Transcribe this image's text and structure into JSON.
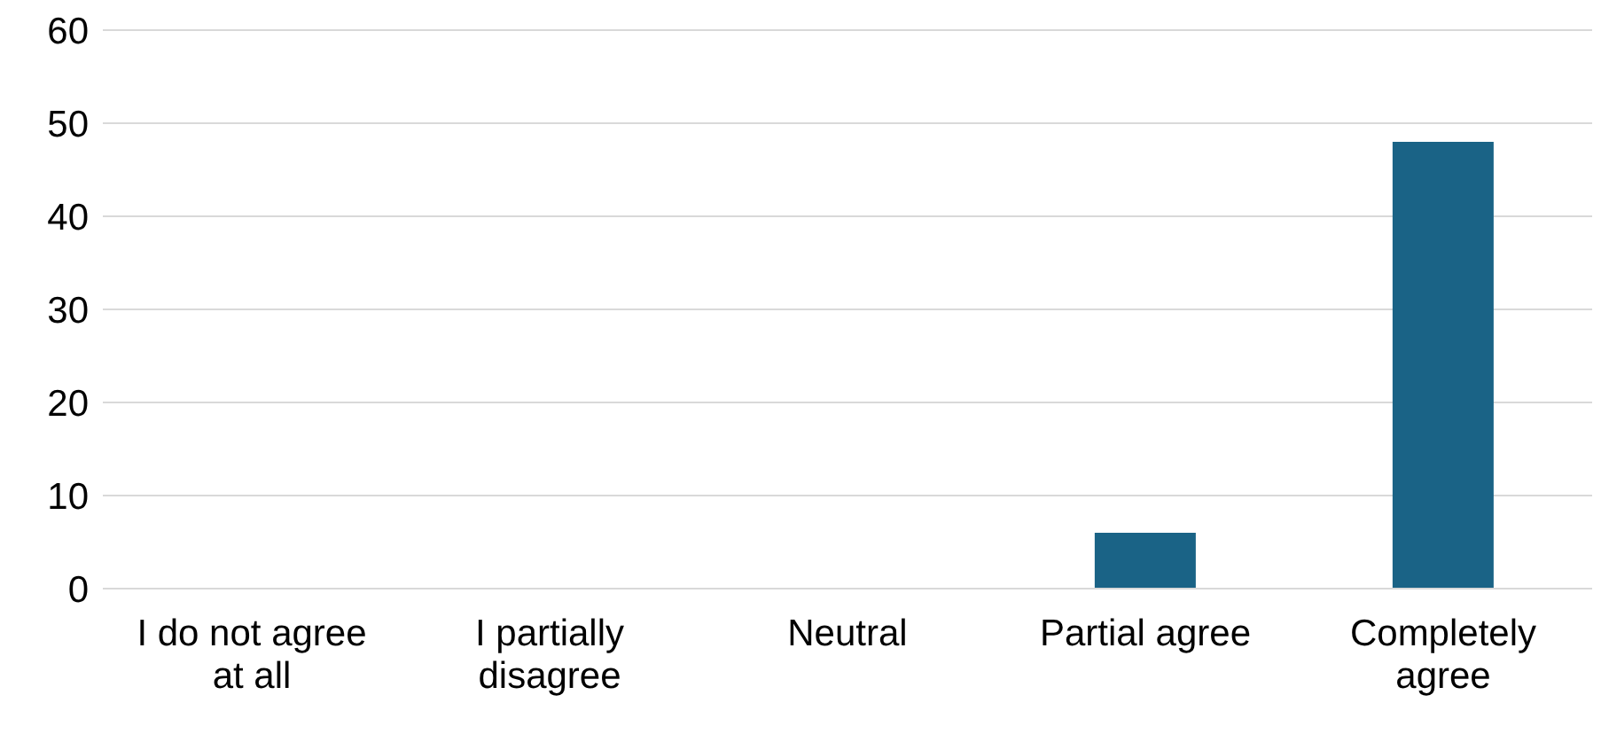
{
  "chart_data": {
    "type": "bar",
    "categories": [
      "I do not agree at all",
      "I partially disagree",
      "Neutral",
      "Partial agree",
      "Completely agree"
    ],
    "values": [
      0,
      0,
      0,
      6,
      48
    ],
    "color": "#1a6386",
    "ylim": [
      0,
      60
    ],
    "yticks": [
      0,
      10,
      20,
      30,
      40,
      50,
      60
    ],
    "grid": "y",
    "legend": false
  }
}
